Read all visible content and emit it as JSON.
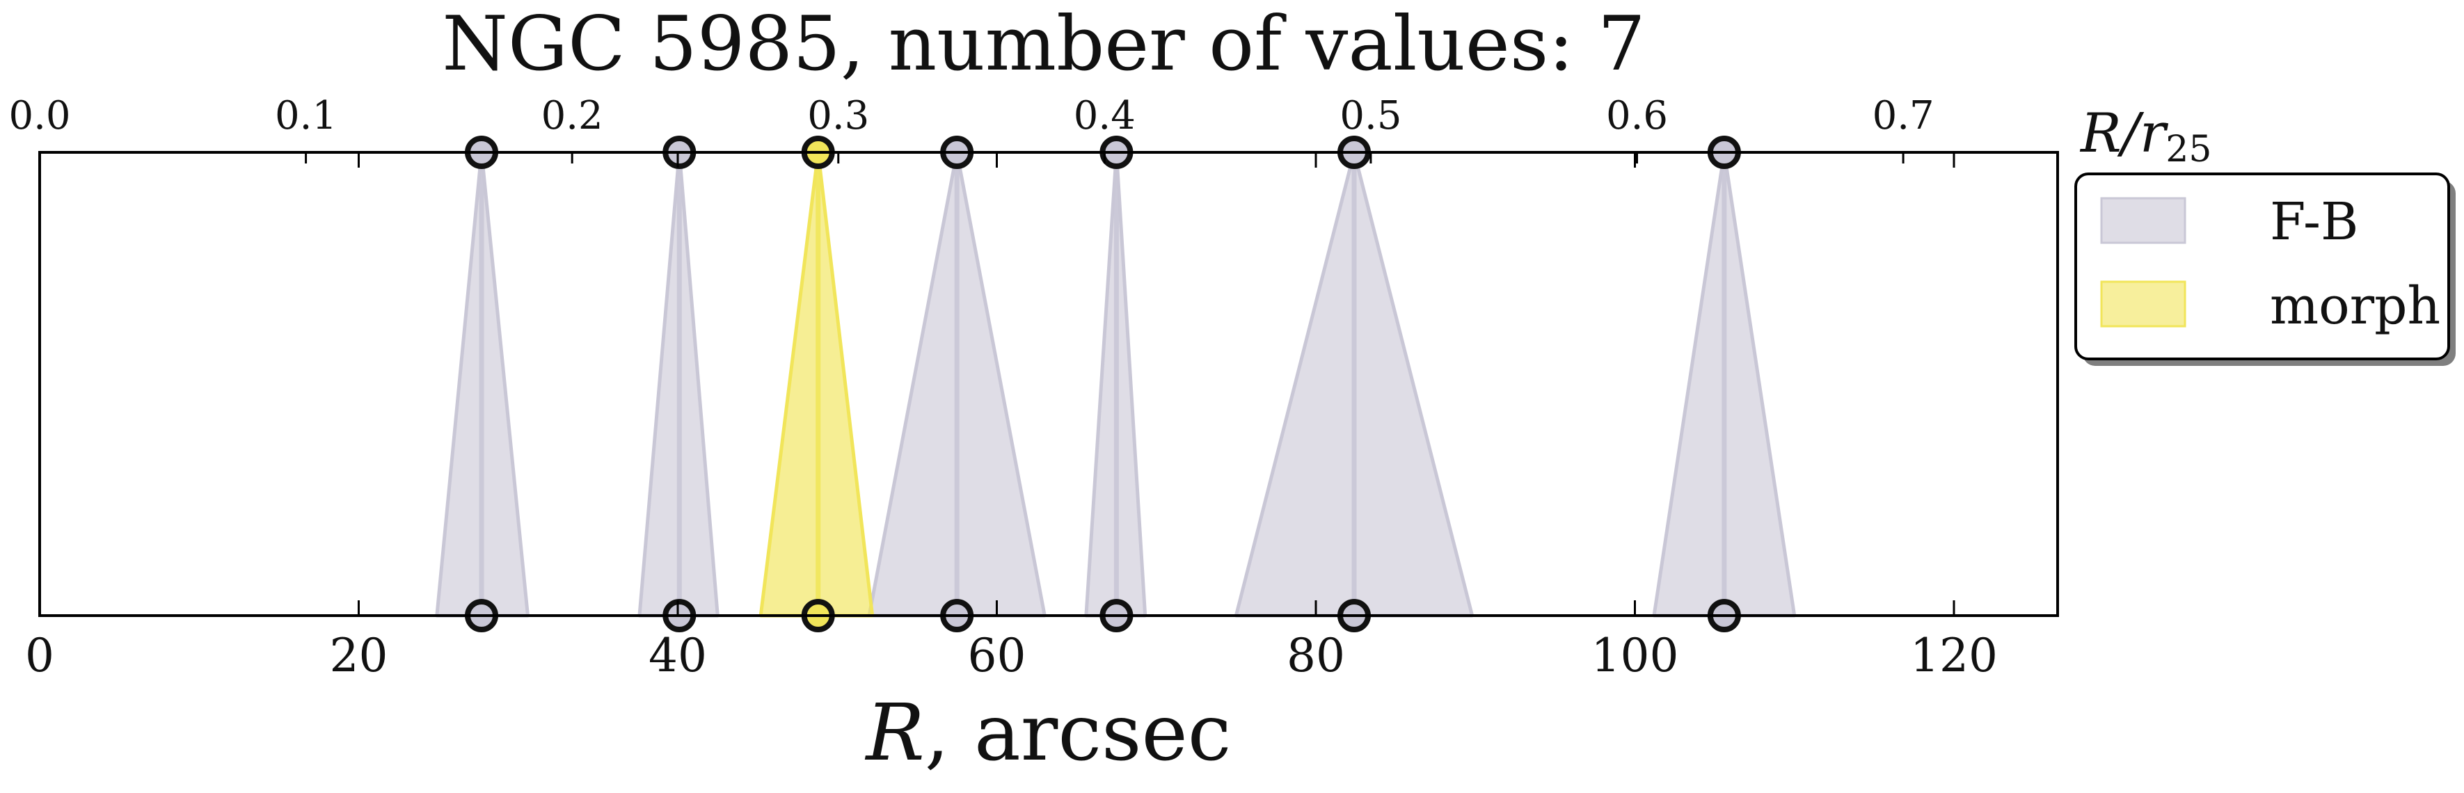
{
  "chart_data": {
    "type": "area",
    "title": "NGC 5985, number of values: 7",
    "xlabel": "R, arcsec",
    "xlabel_symbol": "R",
    "xlabel_unit": ", arcsec",
    "top_axis_label": "R/r25",
    "xlim": [
      0,
      126.5
    ],
    "xticks": [
      0,
      20,
      40,
      60,
      80,
      100,
      120
    ],
    "top_xlim": [
      0.0,
      0.758
    ],
    "top_xticks": [
      "0.0",
      "0.1",
      "0.2",
      "0.3",
      "0.4",
      "0.5",
      "0.6",
      "0.7"
    ],
    "top_xtick_values": [
      0.0,
      0.1,
      0.2,
      0.3,
      0.4,
      0.5,
      0.6,
      0.7
    ],
    "legend": {
      "location": "outside-right",
      "entries": [
        "F-B",
        "morph"
      ]
    },
    "series": [
      {
        "name": "F-B",
        "color": "#c9c7d6",
        "points": [
          {
            "R": 27.7,
            "R_min": 24.9,
            "R_max": 30.6
          },
          {
            "R": 40.1,
            "R_min": 37.6,
            "R_max": 42.5
          },
          {
            "R": 57.5,
            "R_min": 52.0,
            "R_max": 63.0
          },
          {
            "R": 67.5,
            "R_min": 65.6,
            "R_max": 69.3
          },
          {
            "R": 82.4,
            "R_min": 75.0,
            "R_max": 89.8
          },
          {
            "R": 105.6,
            "R_min": 101.2,
            "R_max": 110.0
          }
        ]
      },
      {
        "name": "morph",
        "color": "#f1e55a",
        "points": [
          {
            "R": 48.8,
            "R_min": 45.2,
            "R_max": 52.2
          }
        ]
      }
    ]
  }
}
